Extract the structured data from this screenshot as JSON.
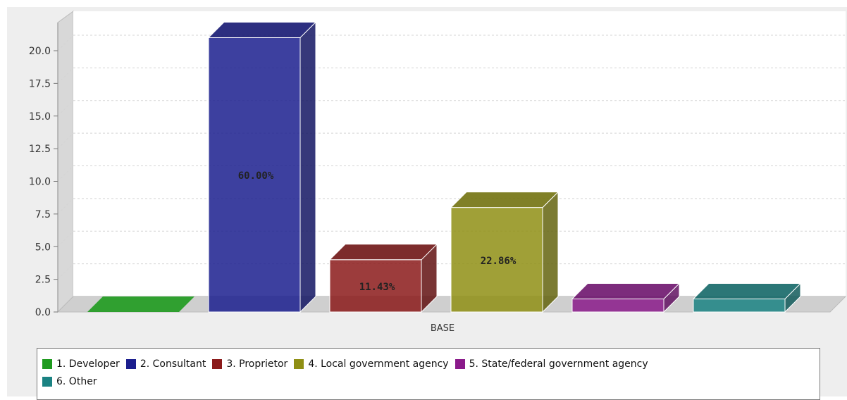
{
  "chart_data": {
    "type": "bar",
    "categories": [
      "BASE"
    ],
    "xlabel": "",
    "ylabel": "",
    "ylim": [
      0,
      20.0
    ],
    "yticks": [
      "0.0",
      "2.5",
      "5.0",
      "7.5",
      "10.0",
      "12.5",
      "15.0",
      "17.5",
      "20.0"
    ],
    "grid": true,
    "legend_position": "bottom",
    "series": [
      {
        "name": "1. Developer",
        "values": [
          0
        ],
        "color": "#1e9a1e",
        "label": ""
      },
      {
        "name": "2. Consultant",
        "values": [
          21
        ],
        "color": "#1b1e8e",
        "label": "60.00%"
      },
      {
        "name": "3. Proprietor",
        "values": [
          4
        ],
        "color": "#8b1a1a",
        "label": "11.43%"
      },
      {
        "name": "4. Local government agency",
        "values": [
          8
        ],
        "color": "#8f8f14",
        "label": "22.86%"
      },
      {
        "name": "5. State/federal government agency",
        "values": [
          1
        ],
        "color": "#8a1a8a",
        "label": ""
      },
      {
        "name": "6. Other",
        "values": [
          1
        ],
        "color": "#1a8282",
        "label": ""
      }
    ]
  }
}
